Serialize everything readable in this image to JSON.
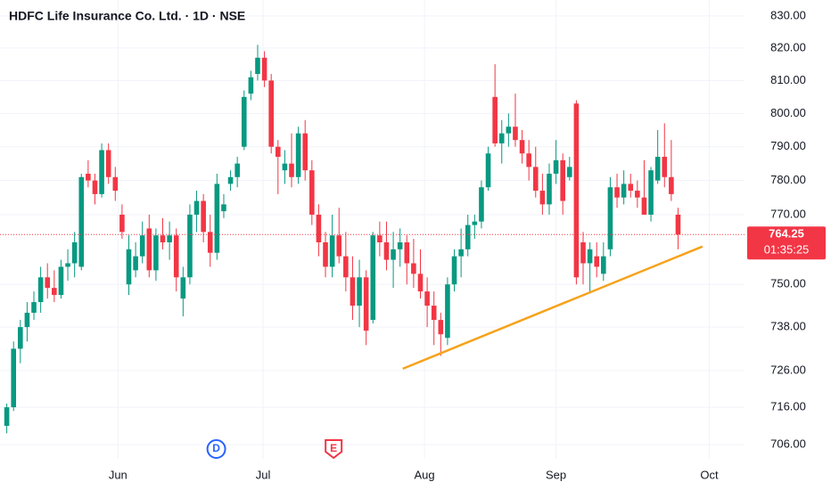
{
  "chart_data": {
    "type": "candlestick",
    "title": "HDFC Life Insurance Co. Ltd. · 1D · NSE",
    "candle_fields": [
      "open",
      "high",
      "low",
      "close"
    ],
    "up_color": "#089981",
    "down_color": "#f23645",
    "candles": [
      [
        711,
        717,
        709,
        716
      ],
      [
        716,
        734,
        715,
        732
      ],
      [
        732,
        740,
        728,
        738
      ],
      [
        738,
        745,
        734,
        742
      ],
      [
        742,
        748,
        740,
        745
      ],
      [
        745,
        755,
        742,
        752
      ],
      [
        752,
        756,
        746,
        749
      ],
      [
        749,
        754,
        745,
        747
      ],
      [
        747,
        757,
        746,
        755
      ],
      [
        755,
        760,
        751,
        756
      ],
      [
        756,
        765,
        752,
        762
      ],
      [
        755,
        782,
        754,
        781
      ],
      [
        782,
        786,
        778,
        780
      ],
      [
        780,
        782,
        773,
        776
      ],
      [
        776,
        791,
        775,
        789
      ],
      [
        789,
        791,
        779,
        781
      ],
      [
        781,
        784,
        774,
        777
      ],
      [
        770,
        773,
        763,
        765
      ],
      [
        750,
        764,
        747,
        760
      ],
      [
        754,
        762,
        752,
        758
      ],
      [
        758,
        768,
        756,
        764
      ],
      [
        766,
        770,
        752,
        754
      ],
      [
        754,
        766,
        751,
        764
      ],
      [
        764,
        769,
        760,
        762
      ],
      [
        762,
        768,
        757,
        764
      ],
      [
        764,
        766,
        748,
        752
      ],
      [
        746,
        755,
        741,
        752
      ],
      [
        752,
        773,
        750,
        770
      ],
      [
        770,
        777,
        765,
        774
      ],
      [
        774,
        776,
        762,
        765
      ],
      [
        765,
        770,
        755,
        759
      ],
      [
        759,
        782,
        757,
        779
      ],
      [
        771,
        776,
        769,
        773
      ],
      [
        779,
        783,
        777,
        781
      ],
      [
        781,
        787,
        778,
        785
      ],
      [
        790,
        807,
        789,
        805
      ],
      [
        806,
        813,
        804,
        811
      ],
      [
        812,
        821,
        810,
        817
      ],
      [
        817,
        819,
        808,
        810
      ],
      [
        810,
        812,
        788,
        790
      ],
      [
        790,
        792,
        776,
        787
      ],
      [
        783,
        789,
        779,
        785
      ],
      [
        785,
        794,
        778,
        781
      ],
      [
        781,
        796,
        779,
        794
      ],
      [
        794,
        798,
        780,
        783
      ],
      [
        783,
        786,
        767,
        770
      ],
      [
        770,
        773,
        758,
        762
      ],
      [
        762,
        765,
        752,
        755
      ],
      [
        755,
        770,
        752,
        764
      ],
      [
        764,
        772,
        756,
        758
      ],
      [
        758,
        765,
        748,
        752
      ],
      [
        752,
        758,
        740,
        744
      ],
      [
        744,
        757,
        738,
        752
      ],
      [
        752,
        754,
        733,
        737
      ],
      [
        740,
        765,
        739,
        764
      ],
      [
        764,
        768,
        758,
        762
      ],
      [
        762,
        768,
        754,
        757
      ],
      [
        757,
        765,
        749,
        760
      ],
      [
        760,
        766,
        755,
        762
      ],
      [
        762,
        764,
        750,
        756
      ],
      [
        756,
        763,
        749,
        753
      ],
      [
        753,
        760,
        746,
        748
      ],
      [
        748,
        752,
        738,
        744
      ],
      [
        744,
        748,
        733,
        740
      ],
      [
        740,
        742,
        730,
        736
      ],
      [
        735,
        752,
        733,
        750
      ],
      [
        750,
        760,
        748,
        758
      ],
      [
        758,
        766,
        752,
        760
      ],
      [
        760,
        770,
        758,
        767
      ],
      [
        767,
        770,
        763,
        768
      ],
      [
        768,
        780,
        766,
        778
      ],
      [
        778,
        790,
        777,
        788
      ],
      [
        805,
        815,
        790,
        791
      ],
      [
        791,
        798,
        785,
        794
      ],
      [
        794,
        800,
        790,
        796
      ],
      [
        796,
        806,
        790,
        792
      ],
      [
        792,
        795,
        785,
        788
      ],
      [
        788,
        792,
        780,
        784
      ],
      [
        784,
        790,
        775,
        777
      ],
      [
        777,
        782,
        770,
        773
      ],
      [
        773,
        785,
        770,
        782
      ],
      [
        782,
        792,
        779,
        786
      ],
      [
        786,
        788,
        770,
        774
      ],
      [
        781,
        787,
        780,
        784
      ],
      [
        803,
        804,
        750,
        752
      ],
      [
        762,
        765,
        750,
        756
      ],
      [
        756,
        762,
        748,
        760
      ],
      [
        758,
        762,
        752,
        755
      ],
      [
        753,
        762,
        751,
        758
      ],
      [
        760,
        781,
        758,
        778
      ],
      [
        778,
        782,
        772,
        775
      ],
      [
        775,
        783,
        773,
        779
      ],
      [
        779,
        782,
        775,
        777
      ],
      [
        777,
        780,
        772,
        775
      ],
      [
        775,
        786,
        770,
        770
      ],
      [
        770,
        784,
        768,
        783
      ],
      [
        780,
        795,
        779,
        787
      ],
      [
        787,
        797,
        778,
        781
      ],
      [
        781,
        792,
        774,
        776
      ],
      [
        770,
        772,
        760,
        764.25
      ]
    ],
    "xlim": [
      -1,
      108.8
    ],
    "xticks": [
      {
        "value": 16.4,
        "label": "Jun"
      },
      {
        "value": 37.8,
        "label": "Jul"
      },
      {
        "value": 61.6,
        "label": "Aug"
      },
      {
        "value": 81,
        "label": "Sep"
      },
      {
        "value": 103.6,
        "label": "Oct"
      }
    ],
    "ylim": [
      702.2,
      835
    ],
    "log_scale": true,
    "yticks": [
      {
        "value": 830,
        "label": "830.00"
      },
      {
        "value": 820,
        "label": "820.00"
      },
      {
        "value": 810,
        "label": "810.00"
      },
      {
        "value": 800,
        "label": "800.00"
      },
      {
        "value": 790,
        "label": "790.00"
      },
      {
        "value": 780,
        "label": "780.00"
      },
      {
        "value": 770,
        "label": "770.00"
      },
      {
        "value": 750,
        "label": "750.00"
      },
      {
        "value": 738,
        "label": "738.00"
      },
      {
        "value": 726,
        "label": "726.00"
      },
      {
        "value": 716,
        "label": "716.00"
      },
      {
        "value": 706,
        "label": "706.00"
      }
    ],
    "grid": true,
    "last_price": 764.25,
    "countdown": "01:35:25",
    "trendline": {
      "x": [
        58.4,
        102.6
      ],
      "y": [
        726.5,
        760.8
      ],
      "color": "#f7a21b"
    },
    "events": [
      {
        "x": 30.9,
        "label": "D",
        "color": "#2962ff"
      },
      {
        "x": 48.2,
        "label": "E",
        "color": "#f23645"
      }
    ]
  }
}
